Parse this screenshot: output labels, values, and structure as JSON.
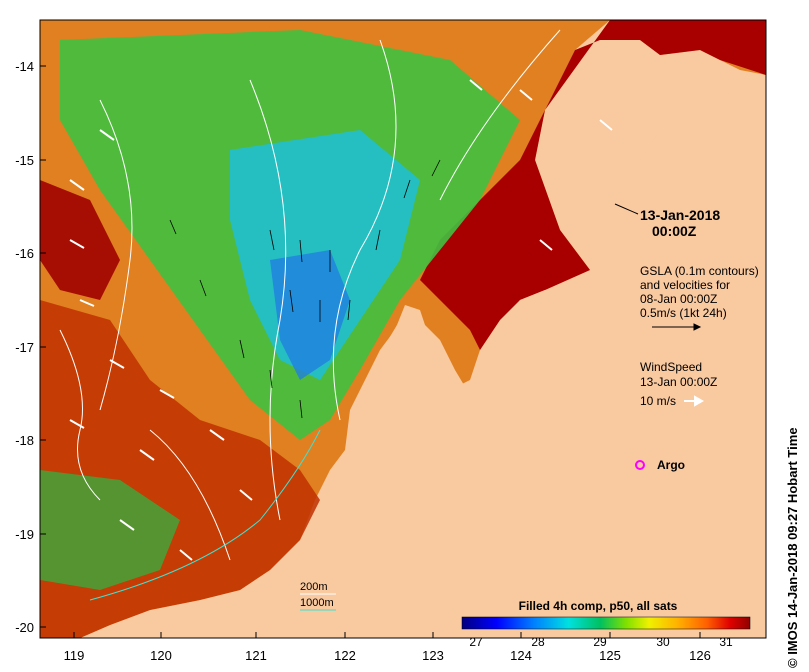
{
  "map": {
    "x_ticks": [
      "119",
      "120",
      "121",
      "122",
      "123",
      "124",
      "125",
      "126"
    ],
    "y_ticks": [
      "-14",
      "-15",
      "-16",
      "-17",
      "-18",
      "-19",
      "-20"
    ],
    "date_line1": "13-Jan-2018",
    "date_line2": "00:00Z",
    "gsla_line1": "GSLA (0.1m contours)",
    "gsla_line2": "and velocities for",
    "gsla_line3": "08-Jan 00:00Z",
    "gsla_line4": "0.5m/s (1kt 24h)",
    "wind_line1": "WindSpeed",
    "wind_line2": "13-Jan 00:00Z",
    "wind_line3": "10 m/s",
    "argo_label": "Argo",
    "depth_200": "200m",
    "depth_1000": "1000m",
    "colorbar_title": "Filled 4h comp, p50, all sats",
    "colorbar_ticks": [
      "27",
      "28",
      "29",
      "30",
      "31"
    ],
    "credit": "© IMOS 14-Jan-2018 09:27 Hobart Time",
    "colors": {
      "land": "#f9c9a0",
      "warm": "#a00000",
      "cool": "#00a0d0",
      "argo": "#ff00ff",
      "contour": "#ffffff",
      "isobath_1000": "#40e0d0"
    }
  }
}
